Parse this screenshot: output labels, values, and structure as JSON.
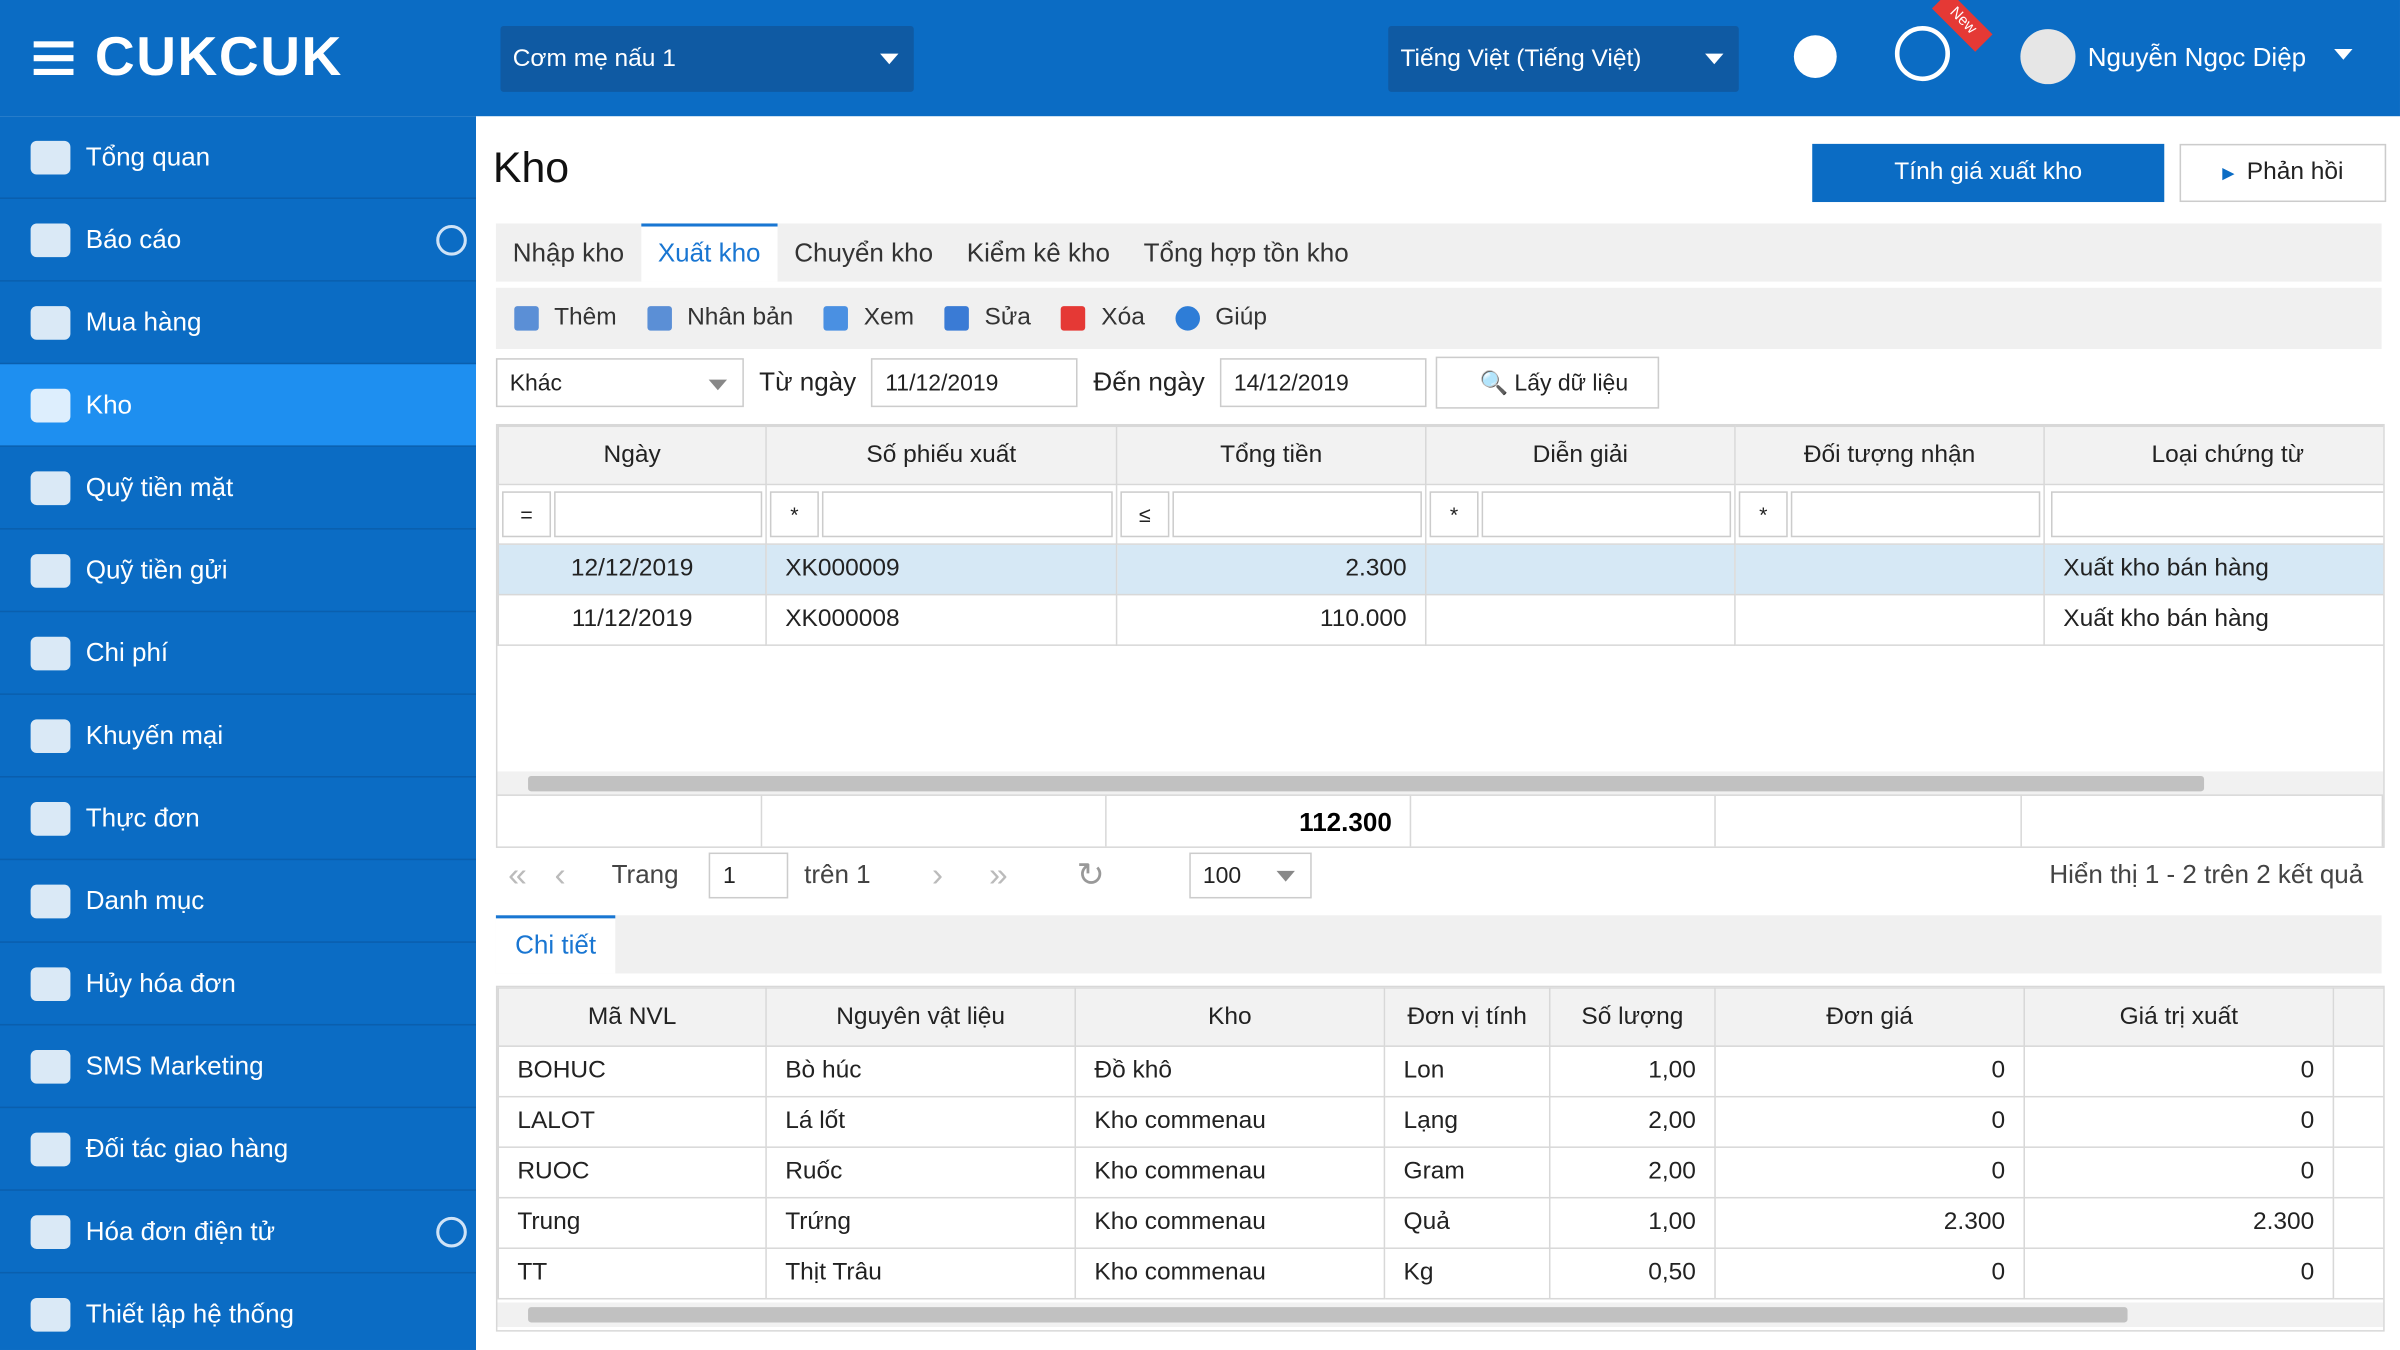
{
  "header": {
    "logo": "CUKCUK",
    "restaurant": "Cơm mẹ nấu 1",
    "language": "Tiếng Việt (Tiếng Việt)",
    "badge": "New",
    "user": "Nguyễn Ngọc Diệp"
  },
  "sidebar": {
    "items": [
      {
        "label": "Tổng quan"
      },
      {
        "label": "Báo cáo",
        "expandable": true
      },
      {
        "label": "Mua hàng"
      },
      {
        "label": "Kho",
        "active": true
      },
      {
        "label": "Quỹ tiền mặt"
      },
      {
        "label": "Quỹ tiền gửi"
      },
      {
        "label": "Chi phí"
      },
      {
        "label": "Khuyến mại"
      },
      {
        "label": "Thực đơn"
      },
      {
        "label": "Danh mục"
      },
      {
        "label": "Hủy hóa đơn"
      },
      {
        "label": "SMS Marketing"
      },
      {
        "label": "Đối tác giao hàng"
      },
      {
        "label": "Hóa đơn điện tử",
        "expandable": true
      },
      {
        "label": "Thiết lập hệ thống"
      }
    ]
  },
  "page": {
    "title": "Kho",
    "primary_button": "Tính giá xuất kho",
    "feedback_button": "Phản hồi"
  },
  "tabs": [
    {
      "label": "Nhập kho"
    },
    {
      "label": "Xuất kho",
      "active": true
    },
    {
      "label": "Chuyển kho"
    },
    {
      "label": "Kiểm kê kho"
    },
    {
      "label": "Tổng hợp tồn kho"
    }
  ],
  "toolbar": [
    "Thêm",
    "Nhân bản",
    "Xem",
    "Sửa",
    "Xóa",
    "Giúp"
  ],
  "filter": {
    "type": "Khác",
    "from_label": "Từ ngày",
    "from": "11/12/2019",
    "to_label": "Đến ngày",
    "to": "14/12/2019",
    "button": "Lấy dữ liệu"
  },
  "master": {
    "columns": [
      "Ngày",
      "Số phiếu xuất",
      "Tổng tiền",
      "Diễn giải",
      "Đối tượng nhận",
      "Loại chứng từ"
    ],
    "filter_ops": [
      "=",
      "*",
      "≤",
      "*",
      "*",
      null
    ],
    "rows": [
      [
        "12/12/2019",
        "XK000009",
        "2.300",
        null,
        null,
        "Xuất kho bán hàng"
      ],
      [
        "11/12/2019",
        "XK000008",
        "110.000",
        null,
        null,
        "Xuất kho bán hàng"
      ]
    ],
    "total": "112.300"
  },
  "pager": {
    "page_label": "Trang",
    "page": "1",
    "of": "trên 1",
    "size": "100",
    "summary": "Hiển thị 1 - 2 trên 2 kết quả"
  },
  "detail": {
    "tab": "Chi tiết",
    "columns": [
      "Mã NVL",
      "Nguyên vật liệu",
      "Kho",
      "Đơn vị tính",
      "Số lượng",
      "Đơn giá",
      "Giá trị xuất"
    ],
    "rows": [
      [
        "BOHUC",
        "Bò húc",
        "Đồ khô",
        "Lon",
        "1,00",
        "0",
        "0"
      ],
      [
        "LALOT",
        "Lá lốt",
        "Kho commenau",
        "Lạng",
        "2,00",
        "0",
        "0"
      ],
      [
        "RUOC",
        "Ruốc",
        "Kho commenau",
        "Gram",
        "2,00",
        "0",
        "0"
      ],
      [
        "Trung",
        "Trứng",
        "Kho commenau",
        "Quả",
        "1,00",
        "2.300",
        "2.300"
      ],
      [
        "TT",
        "Thịt Trâu",
        "Kho commenau",
        "Kg",
        "0,50",
        "0",
        "0"
      ]
    ]
  }
}
